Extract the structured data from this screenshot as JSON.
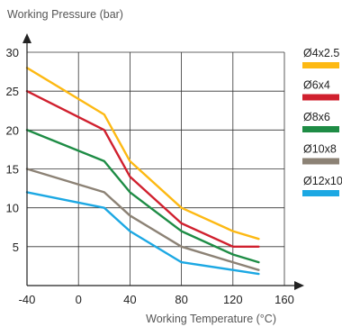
{
  "chart_data": {
    "type": "line",
    "ylabel": "Working Pressure (bar)",
    "xlabel": "Working Temperature (°C)",
    "xlim": [
      -40,
      160
    ],
    "ylim": [
      0,
      30
    ],
    "xticks": [
      -40,
      0,
      40,
      80,
      120,
      160
    ],
    "yticks": [
      5,
      10,
      15,
      20,
      25,
      30
    ],
    "grid": true,
    "legend_position": "right",
    "series": [
      {
        "name": "Ø4x2.5",
        "color": "#FDB913",
        "points": [
          [
            -40,
            28
          ],
          [
            20,
            22
          ],
          [
            40,
            16
          ],
          [
            80,
            10
          ],
          [
            120,
            7
          ],
          [
            140,
            6
          ]
        ]
      },
      {
        "name": "Ø6x4",
        "color": "#D0202E",
        "points": [
          [
            -40,
            25
          ],
          [
            20,
            20
          ],
          [
            40,
            14
          ],
          [
            80,
            8
          ],
          [
            120,
            5
          ],
          [
            140,
            5
          ]
        ]
      },
      {
        "name": "Ø8x6",
        "color": "#1E8C45",
        "points": [
          [
            -40,
            20
          ],
          [
            20,
            16
          ],
          [
            40,
            12
          ],
          [
            80,
            7
          ],
          [
            120,
            4
          ],
          [
            140,
            3
          ]
        ]
      },
      {
        "name": "Ø10x8",
        "color": "#8C8275",
        "points": [
          [
            -40,
            15
          ],
          [
            20,
            12
          ],
          [
            40,
            9
          ],
          [
            80,
            5
          ],
          [
            120,
            3
          ],
          [
            140,
            2
          ]
        ]
      },
      {
        "name": "Ø12x10",
        "color": "#1CA8E3",
        "points": [
          [
            -40,
            12
          ],
          [
            20,
            10
          ],
          [
            40,
            7
          ],
          [
            80,
            3
          ],
          [
            120,
            2
          ],
          [
            140,
            1.5
          ]
        ]
      }
    ]
  }
}
